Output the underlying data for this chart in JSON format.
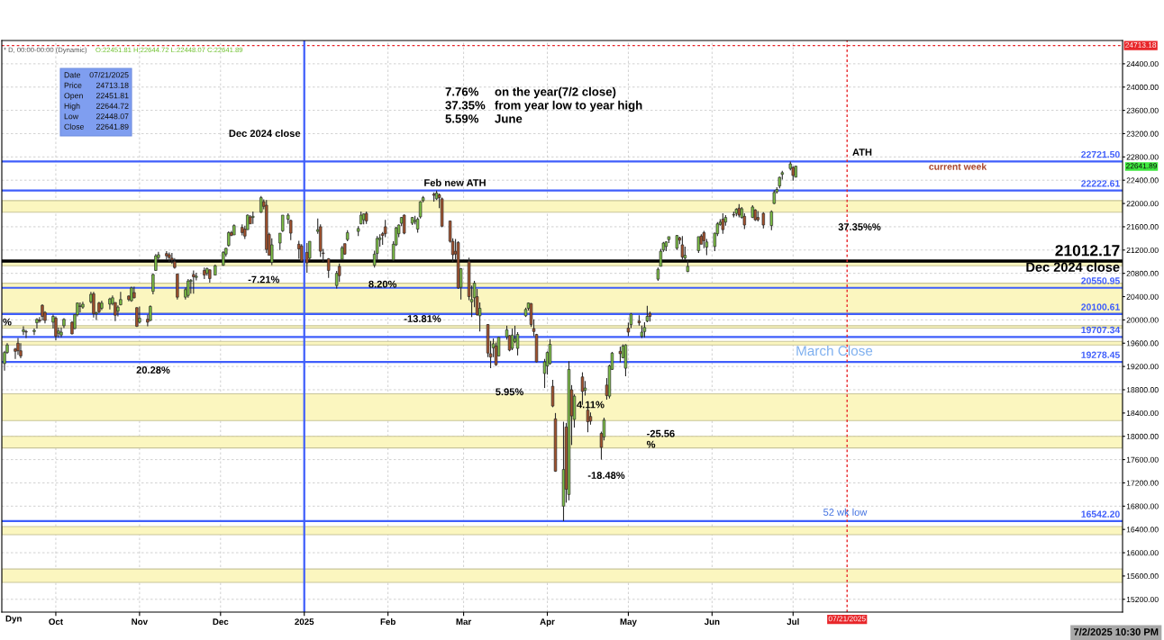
{
  "chart_data": {
    "type": "candlestick",
    "series": [
      {
        "color": "#7cbf45",
        "x": [
          "2024-09-12",
          "2024-09-13",
          "2024-09-19",
          "2024-09-23",
          "2024-09-24",
          "2024-09-30",
          "2024-10-02",
          "2024-10-03",
          "2024-10-04",
          "2024-10-08",
          "2024-10-09",
          "2024-10-10",
          "2024-10-11",
          "2024-10-14",
          "2024-10-16",
          "2024-10-18",
          "2024-10-21",
          "2024-10-22",
          "2024-10-24",
          "2024-10-25",
          "2024-10-29",
          "2024-11-01",
          "2024-11-05",
          "2024-11-06",
          "2024-11-07",
          "2024-11-08",
          "2024-11-18",
          "2024-11-19",
          "2024-11-20",
          "2024-11-22",
          "2024-11-26",
          "2024-11-29",
          "2024-12-02",
          "2024-12-03",
          "2024-12-04",
          "2024-12-06",
          "2024-12-11",
          "2024-12-13",
          "2024-12-16",
          "2024-12-20",
          "2024-12-23",
          "2024-12-24",
          "2024-12-26",
          "2025-01-03",
          "2025-01-06",
          "2025-01-13",
          "2025-01-15",
          "2025-01-17",
          "2025-01-21",
          "2025-01-22",
          "2025-01-23",
          "2025-01-27",
          "2025-01-28",
          "2025-01-29",
          "2025-02-03",
          "2025-02-04",
          "2025-02-05",
          "2025-02-06",
          "2025-02-10",
          "2025-02-11",
          "2025-02-12",
          "2025-02-13",
          "2025-02-14",
          "2025-02-19",
          "2025-02-28",
          "2025-03-04",
          "2025-03-05",
          "2025-03-07",
          "2025-03-12",
          "2025-03-14",
          "2025-03-17",
          "2025-03-19",
          "2025-03-20",
          "2025-03-21",
          "2025-03-24",
          "2025-03-25",
          "2025-03-31",
          "2025-04-01",
          "2025-04-02",
          "2025-04-07",
          "2025-04-09",
          "2025-04-11",
          "2025-04-15",
          "2025-04-22",
          "2025-04-24",
          "2025-04-25",
          "2025-04-29",
          "2025-04-30",
          "2025-05-02",
          "2025-05-06",
          "2025-05-07",
          "2025-05-08",
          "2025-05-12",
          "2025-05-13",
          "2025-05-14",
          "2025-05-15",
          "2025-05-16",
          "2025-05-19",
          "2025-05-22",
          "2025-05-23",
          "2025-05-27",
          "2025-05-30",
          "2025-06-02",
          "2025-06-03",
          "2025-06-04",
          "2025-06-06",
          "2025-06-10",
          "2025-06-12",
          "2025-06-16",
          "2025-06-23",
          "2025-06-24",
          "2025-06-25",
          "2025-06-26",
          "2025-06-27",
          "2025-06-30",
          "2025-07-02"
        ],
        "ohlc": [
          [
            19250,
            19470,
            19130,
            19440
          ],
          [
            19440,
            19600,
            19420,
            19570
          ],
          [
            19800,
            19890,
            19740,
            19830
          ],
          [
            19800,
            19850,
            19740,
            19820
          ],
          [
            19950,
            20030,
            19850,
            20010
          ],
          [
            19960,
            20090,
            19850,
            20060
          ],
          [
            19770,
            19870,
            19700,
            19810
          ],
          [
            19740,
            19870,
            19700,
            19790
          ],
          [
            19900,
            20030,
            19860,
            20010
          ],
          [
            19850,
            20100,
            19840,
            20090
          ],
          [
            20090,
            20300,
            20060,
            20290
          ],
          [
            20230,
            20300,
            20130,
            20240
          ],
          [
            20220,
            20310,
            20190,
            20270
          ],
          [
            20310,
            20480,
            20280,
            20440
          ],
          [
            20100,
            20140,
            20000,
            20120
          ],
          [
            20200,
            20330,
            20170,
            20290
          ],
          [
            20270,
            20380,
            20180,
            20360
          ],
          [
            20280,
            20420,
            20250,
            20380
          ],
          [
            20150,
            20250,
            20060,
            20220
          ],
          [
            20260,
            20480,
            20250,
            20350
          ],
          [
            20330,
            20570,
            20310,
            20550
          ],
          [
            19960,
            20230,
            19940,
            20030
          ],
          [
            19990,
            20250,
            19980,
            20230
          ],
          [
            20490,
            20800,
            20440,
            20780
          ],
          [
            20850,
            21130,
            20840,
            21100
          ],
          [
            21070,
            21170,
            21030,
            21120
          ],
          [
            20390,
            20560,
            20350,
            20520
          ],
          [
            20420,
            20700,
            20380,
            20670
          ],
          [
            20660,
            20700,
            20450,
            20680
          ],
          [
            20730,
            20810,
            20680,
            20750
          ],
          [
            20800,
            20900,
            20760,
            20880
          ],
          [
            20770,
            20950,
            20770,
            20930
          ],
          [
            20940,
            21180,
            20930,
            21160
          ],
          [
            21130,
            21240,
            21090,
            21230
          ],
          [
            21280,
            21520,
            21260,
            21500
          ],
          [
            21460,
            21640,
            21460,
            21620
          ],
          [
            21550,
            21810,
            21550,
            21800
          ],
          [
            21760,
            21860,
            21650,
            21780
          ],
          [
            21850,
            22130,
            21840,
            22100
          ],
          [
            20990,
            21400,
            20940,
            21290
          ],
          [
            21320,
            21490,
            21200,
            21490
          ],
          [
            21530,
            21800,
            21510,
            21800
          ],
          [
            21730,
            21830,
            21650,
            21800
          ],
          [
            21060,
            21350,
            21020,
            21350
          ],
          [
            21520,
            21740,
            21480,
            21550
          ],
          [
            20590,
            20840,
            20540,
            20800
          ],
          [
            21040,
            21270,
            21030,
            21240
          ],
          [
            21380,
            21540,
            21350,
            21500
          ],
          [
            21520,
            21610,
            21440,
            21570
          ],
          [
            21650,
            21860,
            21640,
            21800
          ],
          [
            21720,
            21830,
            21640,
            21820
          ],
          [
            20940,
            21190,
            20900,
            21130
          ],
          [
            21140,
            21440,
            21030,
            21400
          ],
          [
            21380,
            21470,
            21260,
            21410
          ],
          [
            21030,
            21350,
            21010,
            21300
          ],
          [
            21290,
            21600,
            21270,
            21580
          ],
          [
            21480,
            21640,
            21420,
            21630
          ],
          [
            21660,
            21770,
            21610,
            21760
          ],
          [
            21660,
            21770,
            21630,
            21760
          ],
          [
            21690,
            21790,
            21640,
            21710
          ],
          [
            21560,
            21760,
            21500,
            21730
          ],
          [
            21770,
            22040,
            21740,
            22030
          ],
          [
            22050,
            22130,
            22020,
            22100
          ],
          [
            22080,
            22222.61,
            22060,
            22180
          ],
          [
            20560,
            20890,
            20350,
            20880
          ],
          [
            20310,
            20590,
            20050,
            20350
          ],
          [
            20380,
            20670,
            20220,
            20630
          ],
          [
            20070,
            20300,
            19800,
            20200
          ],
          [
            19520,
            19680,
            19360,
            19590
          ],
          [
            19380,
            19710,
            19380,
            19700
          ],
          [
            19710,
            19900,
            19660,
            19830
          ],
          [
            19510,
            19850,
            19480,
            19740
          ],
          [
            19630,
            19900,
            19600,
            19680
          ],
          [
            19510,
            19790,
            19390,
            19750
          ],
          [
            20070,
            20210,
            20050,
            20180
          ],
          [
            20200,
            20300,
            20160,
            20290
          ],
          [
            19080,
            19330,
            18830,
            19278.45
          ],
          [
            19210,
            19460,
            19060,
            19440
          ],
          [
            19250,
            19670,
            19230,
            19580
          ],
          [
            16800,
            18250,
            16542.2,
            17430
          ],
          [
            17000,
            19290,
            16900,
            19150
          ],
          [
            18290,
            18720,
            18150,
            18690
          ],
          [
            18790,
            18950,
            18700,
            18830
          ],
          [
            17990,
            18320,
            17930,
            18280
          ],
          [
            18690,
            19230,
            18650,
            19210
          ],
          [
            19150,
            19450,
            19140,
            19430
          ],
          [
            19350,
            19580,
            19340,
            19550
          ],
          [
            19170,
            19580,
            19030,
            19570
          ],
          [
            19920,
            20120,
            19860,
            20100
          ],
          [
            19720,
            19900,
            19690,
            19790
          ],
          [
            19800,
            19960,
            19700,
            19870
          ],
          [
            19980,
            20240,
            19960,
            20060
          ],
          [
            20700,
            20900,
            20670,
            20870
          ],
          [
            20920,
            21220,
            20920,
            21180
          ],
          [
            21200,
            21340,
            21170,
            21320
          ],
          [
            21260,
            21350,
            21180,
            21340
          ],
          [
            21380,
            21430,
            21320,
            21430
          ],
          [
            21230,
            21460,
            21200,
            21450
          ],
          [
            21060,
            21260,
            21030,
            21110
          ],
          [
            20830,
            21020,
            20820,
            20920
          ],
          [
            21190,
            21430,
            21150,
            21430
          ],
          [
            21250,
            21390,
            21110,
            21340
          ],
          [
            21260,
            21500,
            21180,
            21490
          ],
          [
            21480,
            21680,
            21440,
            21650
          ],
          [
            21640,
            21730,
            21620,
            21680
          ],
          [
            21680,
            21800,
            21620,
            21760
          ],
          [
            21830,
            21920,
            21780,
            21900
          ],
          [
            21760,
            21940,
            21740,
            21910
          ],
          [
            21760,
            21970,
            21750,
            21940
          ],
          [
            21620,
            21880,
            21540,
            21860
          ],
          [
            22000,
            22230,
            21990,
            22190
          ],
          [
            22200,
            22280,
            22170,
            22240
          ],
          [
            22300,
            22460,
            22260,
            22450
          ],
          [
            22500,
            22560,
            22410,
            22530
          ],
          [
            22600,
            22720,
            22570,
            22680
          ],
          [
            22451.81,
            22644.72,
            22448.07,
            22641.89
          ]
        ]
      },
      {
        "color": "#a3512c",
        "x": [
          "2024-09-16",
          "2024-09-17",
          "2024-09-18",
          "2024-09-20",
          "2024-09-25",
          "2024-09-26",
          "2024-09-27",
          "2024-10-01",
          "2024-10-07",
          "2024-10-15",
          "2024-10-17",
          "2024-10-23",
          "2024-10-28",
          "2024-10-30",
          "2024-10-31",
          "2024-11-04",
          "2024-11-11",
          "2024-11-12",
          "2024-11-13",
          "2024-11-14",
          "2024-11-15",
          "2024-11-21",
          "2024-11-25",
          "2024-11-27",
          "2024-12-05",
          "2024-12-09",
          "2024-12-10",
          "2024-12-12",
          "2024-12-17",
          "2024-12-18",
          "2024-12-19",
          "2024-12-27",
          "2024-12-30",
          "2024-12-31",
          "2025-01-02",
          "2025-01-07",
          "2025-01-08",
          "2025-01-10",
          "2025-01-14",
          "2025-01-16",
          "2025-01-24",
          "2025-01-30",
          "2025-01-31",
          "2025-02-07",
          "2025-02-18",
          "2025-02-20",
          "2025-02-21",
          "2025-02-24",
          "2025-02-25",
          "2025-02-26",
          "2025-02-27",
          "2025-03-03",
          "2025-03-06",
          "2025-03-10",
          "2025-03-11",
          "2025-03-13",
          "2025-03-18",
          "2025-03-26",
          "2025-03-27",
          "2025-03-28",
          "2025-04-03",
          "2025-04-04",
          "2025-04-08",
          "2025-04-10",
          "2025-04-14",
          "2025-04-16",
          "2025-04-17",
          "2025-04-21",
          "2025-04-23",
          "2025-04-28",
          "2025-05-01",
          "2025-05-05",
          "2025-05-09",
          "2025-05-20",
          "2025-05-21",
          "2025-05-28",
          "2025-05-29",
          "2025-06-05",
          "2025-06-09",
          "2025-06-11",
          "2025-06-13",
          "2025-06-17",
          "2025-06-18",
          "2025-06-20",
          "2025-07-01"
        ],
        "ohlc": [
          [
            19500,
            19520,
            19330,
            19460
          ],
          [
            19600,
            19690,
            19400,
            19470
          ],
          [
            19470,
            19600,
            19340,
            19380
          ],
          [
            19800,
            19830,
            19690,
            19790
          ],
          [
            20000,
            20050,
            19950,
            19980
          ],
          [
            20250,
            20270,
            19990,
            20060
          ],
          [
            20130,
            20150,
            19940,
            19990
          ],
          [
            20030,
            20060,
            19650,
            19720
          ],
          [
            19960,
            19980,
            19750,
            19760
          ],
          [
            20450,
            20480,
            20040,
            20110
          ],
          [
            20290,
            20310,
            20120,
            20140
          ],
          [
            20300,
            20300,
            19980,
            20080
          ],
          [
            20410,
            20420,
            20320,
            20350
          ],
          [
            20470,
            20570,
            20370,
            20380
          ],
          [
            20210,
            20220,
            19880,
            19890
          ],
          [
            20010,
            20090,
            19890,
            19960
          ],
          [
            21140,
            21180,
            21030,
            21100
          ],
          [
            21120,
            21160,
            20990,
            21070
          ],
          [
            21060,
            21150,
            20960,
            21030
          ],
          [
            21000,
            21060,
            20880,
            20900
          ],
          [
            20790,
            20790,
            20350,
            20390
          ],
          [
            20780,
            20850,
            20450,
            20740
          ],
          [
            20850,
            20900,
            20700,
            20770
          ],
          [
            20860,
            20870,
            20640,
            20710
          ],
          [
            21500,
            21530,
            21440,
            21450
          ],
          [
            21590,
            21640,
            21450,
            21500
          ],
          [
            21560,
            21620,
            21390,
            21440
          ],
          [
            21770,
            21800,
            21650,
            21650
          ],
          [
            22030,
            22070,
            21900,
            21950
          ],
          [
            21970,
            22060,
            21150,
            21210
          ],
          [
            21470,
            21500,
            21110,
            21110
          ],
          [
            21710,
            21720,
            21370,
            21490
          ],
          [
            21300,
            21360,
            21050,
            21220
          ],
          [
            21270,
            21300,
            20990,
            21012.17
          ],
          [
            21160,
            21320,
            20810,
            20980
          ],
          [
            21600,
            21640,
            21080,
            21180
          ],
          [
            21150,
            21220,
            20980,
            21140
          ],
          [
            21050,
            21060,
            20720,
            20850
          ],
          [
            20920,
            20970,
            20650,
            20760
          ],
          [
            21310,
            21310,
            21120,
            21130
          ],
          [
            21830,
            21860,
            21650,
            21700
          ],
          [
            21480,
            21510,
            21290,
            21450
          ],
          [
            21600,
            21720,
            21420,
            21480
          ],
          [
            21800,
            21810,
            21470,
            21490
          ],
          [
            22160,
            22190,
            22030,
            22140
          ],
          [
            22150,
            22170,
            21920,
            22100
          ],
          [
            22080,
            22100,
            21590,
            21610
          ],
          [
            21700,
            21700,
            21330,
            21350
          ],
          [
            21350,
            21400,
            20990,
            21120
          ],
          [
            21180,
            21390,
            21040,
            21130
          ],
          [
            21330,
            21350,
            20530,
            20550
          ],
          [
            21000,
            21070,
            20340,
            20400
          ],
          [
            20400,
            20530,
            20070,
            20090
          ],
          [
            19920,
            19930,
            19360,
            19430
          ],
          [
            19420,
            19640,
            19170,
            19360
          ],
          [
            19550,
            19610,
            19210,
            19230
          ],
          [
            19730,
            19740,
            19460,
            19480
          ],
          [
            20280,
            20290,
            19880,
            19920
          ],
          [
            19850,
            20010,
            19720,
            19800
          ],
          [
            19750,
            19760,
            19270,
            19280
          ],
          [
            18860,
            18970,
            18500,
            18520
          ],
          [
            18300,
            18400,
            17390,
            17400
          ],
          [
            18160,
            18230,
            16860,
            17090
          ],
          [
            18800,
            18880,
            17850,
            18350
          ],
          [
            19020,
            19100,
            18540,
            18770
          ],
          [
            18450,
            18520,
            18070,
            18250
          ],
          [
            18340,
            18410,
            18200,
            18260
          ],
          [
            18050,
            18080,
            17600,
            17810
          ],
          [
            18880,
            19000,
            18630,
            18700
          ],
          [
            19460,
            19540,
            19270,
            19420
          ],
          [
            19860,
            19950,
            19720,
            19790
          ],
          [
            19980,
            20080,
            19900,
            19950
          ],
          [
            20110,
            20140,
            19970,
            20060
          ],
          [
            21410,
            21430,
            21300,
            21370
          ],
          [
            21290,
            21440,
            21040,
            21080
          ],
          [
            21440,
            21470,
            21300,
            21300
          ],
          [
            21500,
            21530,
            21230,
            21360
          ],
          [
            21730,
            21830,
            21480,
            21550
          ],
          [
            21810,
            21860,
            21760,
            21800
          ],
          [
            21920,
            21990,
            21760,
            21800
          ],
          [
            21780,
            21830,
            21560,
            21630
          ],
          [
            21890,
            21900,
            21700,
            21720
          ],
          [
            21760,
            21870,
            21690,
            21720
          ],
          [
            21830,
            21850,
            21570,
            21630
          ],
          [
            22620,
            22640,
            22390,
            22480
          ]
        ]
      }
    ],
    "xlim": [
      "2024-09-11",
      "2025-10-31"
    ],
    "xticks": [
      {
        "value": "2024-10-01",
        "label": "Oct"
      },
      {
        "value": "2024-11-01",
        "label": "Nov"
      },
      {
        "value": "2024-12-01",
        "label": "Dec"
      },
      {
        "value": "2025-01-01",
        "label": "2025"
      },
      {
        "value": "2025-02-01",
        "label": "Feb"
      },
      {
        "value": "2025-03-01",
        "label": "Mar"
      },
      {
        "value": "2025-04-01",
        "label": "Apr"
      },
      {
        "value": "2025-05-01",
        "label": "May"
      },
      {
        "value": "2025-06-01",
        "label": "Jun"
      },
      {
        "value": "2025-07-01",
        "label": "Jul"
      }
    ],
    "ylim": [
      14980,
      24800
    ],
    "yticks": [
      {
        "value": 15200,
        "label": "15200.00"
      },
      {
        "value": 15600,
        "label": "15600.00"
      },
      {
        "value": 16000,
        "label": "16000.00"
      },
      {
        "value": 16400,
        "label": "16400.00"
      },
      {
        "value": 16800,
        "label": "16800.00"
      },
      {
        "value": 17200,
        "label": "17200.00"
      },
      {
        "value": 17600,
        "label": "17600.00"
      },
      {
        "value": 18000,
        "label": "18000.00"
      },
      {
        "value": 18400,
        "label": "18400.00"
      },
      {
        "value": 18800,
        "label": "18800.00"
      },
      {
        "value": 19200,
        "label": "19200.00"
      },
      {
        "value": 19600,
        "label": "19600.00"
      },
      {
        "value": 20000,
        "label": "20000.00"
      },
      {
        "value": 20400,
        "label": "20400.00"
      },
      {
        "value": 20800,
        "label": "20800.00"
      },
      {
        "value": 21200,
        "label": "21200.00"
      },
      {
        "value": 21600,
        "label": "21600.00"
      },
      {
        "value": 22000,
        "label": "22000.00"
      },
      {
        "value": 22400,
        "label": "22400.00"
      },
      {
        "value": 22800,
        "label": "22800.00"
      },
      {
        "value": 23200,
        "label": "23200.00"
      },
      {
        "value": 23600,
        "label": "23600.00"
      },
      {
        "value": 24000,
        "label": "24000.00"
      },
      {
        "value": 24400,
        "label": "24400.00"
      }
    ],
    "grid": true,
    "bands": [
      {
        "axis": "y",
        "from": 21850,
        "to": 22050,
        "color": "#fbf6bf"
      },
      {
        "axis": "y",
        "from": 20930,
        "to": 20995,
        "color": "#fbf6bf"
      },
      {
        "axis": "y",
        "from": 20120,
        "to": 20630,
        "color": "#fbf6bf"
      },
      {
        "axis": "y",
        "from": 19860,
        "to": 19900,
        "color": "#fbf6bf"
      },
      {
        "axis": "y",
        "from": 19570,
        "to": 19630,
        "color": "#fbf6bf"
      },
      {
        "axis": "y",
        "from": 18270,
        "to": 18730,
        "color": "#fbf6bf"
      },
      {
        "axis": "y",
        "from": 17800,
        "to": 18000,
        "color": "#fbf6bf"
      },
      {
        "axis": "y",
        "from": 16310,
        "to": 16450,
        "color": "#fbf6bf"
      },
      {
        "axis": "y",
        "from": 15490,
        "to": 15720,
        "color": "#fbf6bf"
      }
    ],
    "ref_lines": [
      {
        "axis": "y",
        "value": 22721.5,
        "label": "22721.50",
        "color": "#3f5efb"
      },
      {
        "axis": "y",
        "value": 22222.61,
        "label": "22222.61",
        "color": "#3f5efb"
      },
      {
        "axis": "y",
        "value": 21012.17,
        "label": "21012.17",
        "color": "#000000"
      },
      {
        "axis": "y",
        "value": 20550.95,
        "label": "20550.95",
        "color": "#3f5efb"
      },
      {
        "axis": "y",
        "value": 20100.61,
        "label": "20100.61",
        "color": "#3f5efb"
      },
      {
        "axis": "y",
        "value": 19707.34,
        "label": "19707.34",
        "color": "#3f5efb"
      },
      {
        "axis": "y",
        "value": 19278.45,
        "label": "19278.45",
        "color": "#3f5efb"
      },
      {
        "axis": "y",
        "value": 16542.2,
        "label": "16542.20",
        "color": "#3f5efb"
      },
      {
        "axis": "y",
        "value": 24713.18,
        "label": "24713.18",
        "color": "#e8262a",
        "line_style": "dotted"
      },
      {
        "axis": "x",
        "value": "2025-01-01",
        "label": "Dec 2024 close",
        "color": "#3f5efb"
      },
      {
        "axis": "x",
        "value": "2025-07-21",
        "label": "07/21/2025",
        "color": "#e8262a",
        "line_style": "dotted"
      }
    ],
    "annotations": [
      "7.76% on the year(7/2 close)",
      "37.35% from year low to year high",
      "5.59% June",
      "Date 07/21/2025\nPrice 24713.18\nOpen 22451.81\nHigh 22644.72\nLow 22448.07\nClose 22641.89",
      "* D, 00:00-00:00 (Dynamic)",
      "O:22451.81 H:22644.72 L:22448.07 C:22641.89",
      "Dyn",
      "7/2/2025 10:30 PM",
      "-13.81%",
      "-18.48%",
      "37.35%%",
      "Feb new ATH",
      "ATH",
      "current week",
      "March Close",
      "52 wk low",
      "Dec 2024 close",
      "22641.89",
      "20.28%",
      {
        "text": "-7.21%",
        "x": "2024-12-17",
        "y": 20680
      },
      {
        "text": "8.20%",
        "x": "2025-01-30",
        "y": 20600
      },
      {
        "text": "5.95%",
        "x": "2025-03-18",
        "y": 18750
      },
      {
        "text": "4.11%",
        "x": "2025-04-17",
        "y": 18530
      },
      {
        "text": "-25.56\n%",
        "x": "2025-05-13",
        "y": 17940
      },
      {
        "text": "%",
        "x": "2024-09-13",
        "y": 19950
      }
    ]
  }
}
